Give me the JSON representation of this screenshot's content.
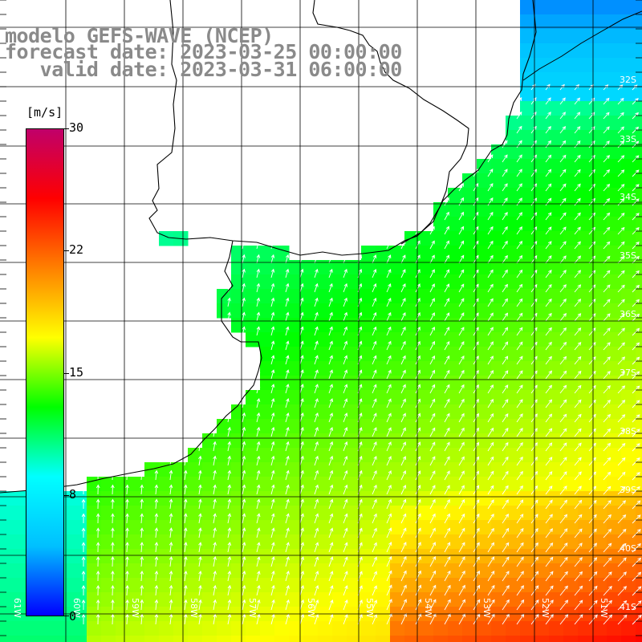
{
  "title": {
    "line1": "modelo GEFS-WAVE (NCEP)",
    "line2": "forecast date: 2023-03-25 00:00:00",
    "line3": "   valid date: 2023-03-31 06:00:00"
  },
  "colorbar": {
    "unit": "[m/s]",
    "ticks": [
      "30",
      "22",
      "15",
      "8",
      "0"
    ],
    "colors": [
      "#0000ff",
      "#00c0ff",
      "#00ffff",
      "#00ff00",
      "#ffff00",
      "#ff8000",
      "#ff0000",
      "#c0006a"
    ]
  },
  "axes": {
    "lon_labels": [
      "61W",
      "60W",
      "59W",
      "58W",
      "57W",
      "56W",
      "55W",
      "54W",
      "53W",
      "52W",
      "51W"
    ],
    "lat_labels": [
      "32S",
      "33S",
      "34S",
      "35S",
      "36S",
      "37S",
      "38S",
      "39S",
      "40S",
      "41S"
    ]
  },
  "colors": {
    "land": "#ffffff",
    "coastline": "#000000",
    "grid": "#000000",
    "arrow": "#ffffff",
    "title": "#8a8a8a"
  }
}
